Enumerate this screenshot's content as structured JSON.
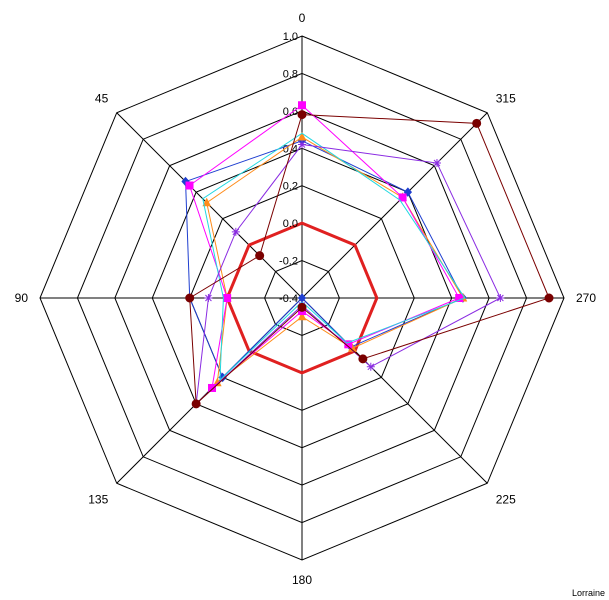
{
  "chart_data": {
    "type": "radar",
    "angles": [
      "0",
      "315",
      "270",
      "225",
      "180",
      "135",
      "90",
      "45"
    ],
    "rings": [
      -0.4,
      -0.2,
      0.0,
      0.2,
      0.4,
      0.6,
      0.8,
      1.0
    ],
    "ring_labels": [
      "-0.4",
      "-0.2",
      "0.0",
      "0.2",
      "0.4",
      "0.6",
      "0.8",
      "1.0"
    ],
    "rlim": [
      -0.4,
      1.0
    ],
    "grid": true,
    "reference_ring": {
      "value": 0.0,
      "color": "#e02020"
    },
    "series": [
      {
        "color": "#1f3fd0",
        "marker": "diamond",
        "values": [
          0.44,
          0.4,
          0.46,
          -0.03,
          -0.4,
          0.2,
          0.2,
          0.48
        ]
      },
      {
        "color": "#ff8c1a",
        "marker": "triangle",
        "values": [
          0.46,
          0.36,
          0.46,
          -0.02,
          -0.3,
          0.24,
          0.0,
          0.32
        ]
      },
      {
        "color": "#ff00ff",
        "marker": "square",
        "values": [
          0.63,
          0.36,
          0.44,
          -0.05,
          -0.33,
          0.28,
          0.0,
          0.45
        ]
      },
      {
        "color": "#20d8e0",
        "marker": "none",
        "values": [
          0.48,
          0.34,
          0.47,
          -0.06,
          -0.38,
          0.22,
          0.02,
          0.35
        ]
      },
      {
        "color": "#8a2be2",
        "marker": "star",
        "values": [
          0.42,
          0.62,
          0.66,
          0.12,
          -0.36,
          0.4,
          0.1,
          0.1
        ]
      },
      {
        "color": "#7a0000",
        "marker": "circle",
        "values": [
          0.58,
          0.92,
          0.92,
          0.06,
          -0.35,
          0.4,
          0.2,
          -0.08
        ]
      }
    ]
  },
  "footer_mark": "Lorraine"
}
